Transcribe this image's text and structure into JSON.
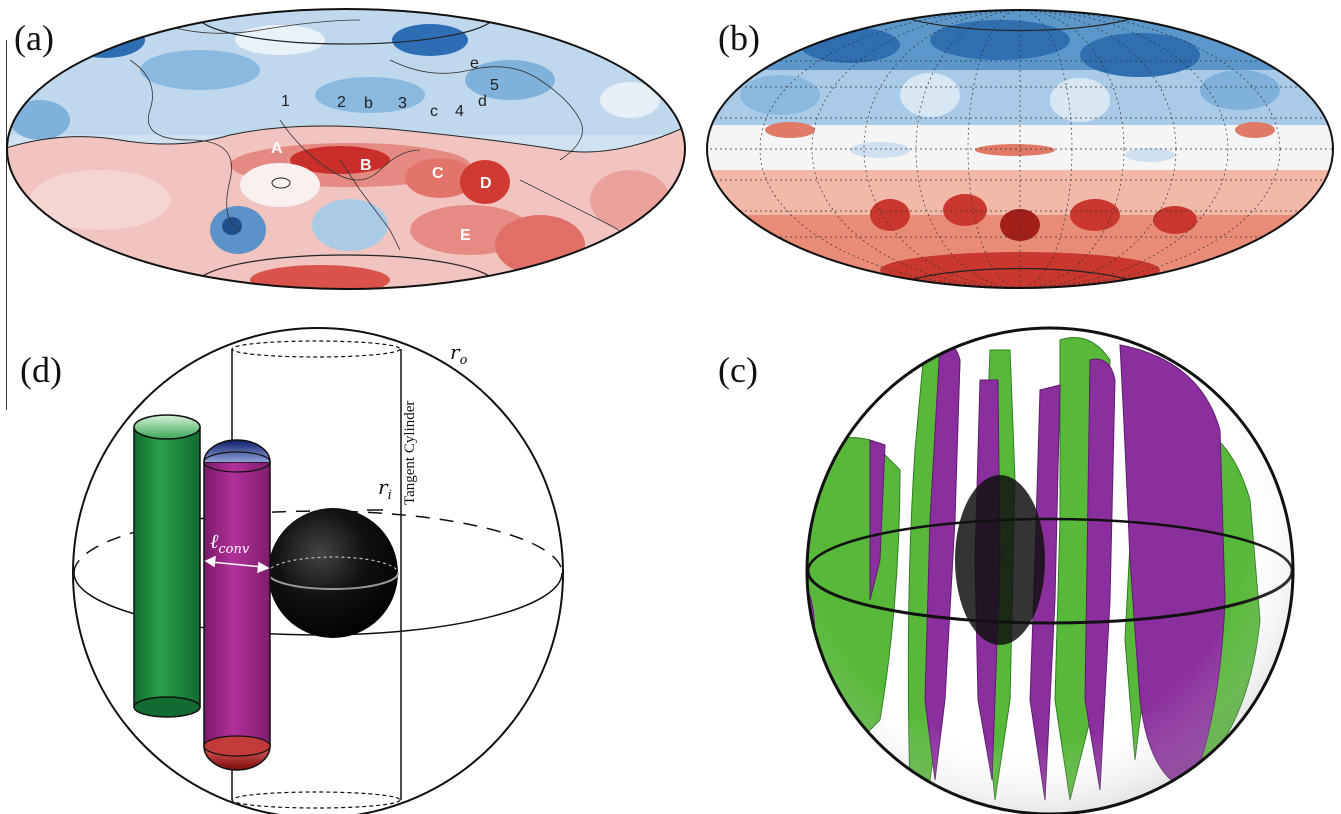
{
  "panels": {
    "a": {
      "label": "(a)",
      "northern_markers": [
        "1",
        "2",
        "b",
        "3",
        "c",
        "4",
        "d",
        "5",
        "e"
      ],
      "southern_markers": [
        "A",
        "B",
        "C",
        "D",
        "E"
      ],
      "colors": {
        "positive": "#d6332f",
        "negative": "#2d6db3",
        "neutral": "#f4f4f4"
      }
    },
    "b": {
      "label": "(b)",
      "colors": {
        "positive": "#c9372e",
        "negative": "#2f6fb0"
      }
    },
    "c": {
      "label": "(c)",
      "colors": {
        "green": "#58b83a",
        "purple": "#8b2f9e",
        "inner_core": "#111111"
      }
    },
    "d": {
      "label": "(d)",
      "outer_radius_label": "r",
      "outer_radius_sub": "o",
      "inner_radius_label": "r",
      "inner_radius_sub": "i",
      "tangent_cylinder_label": "Tangent Cylinder",
      "conv_length_label": "ℓ",
      "conv_length_sub": "conv",
      "colors": {
        "green_column": "#1d8a3e",
        "purple_column": "#a0288a",
        "inner_core": "#0a0a0a"
      }
    }
  }
}
